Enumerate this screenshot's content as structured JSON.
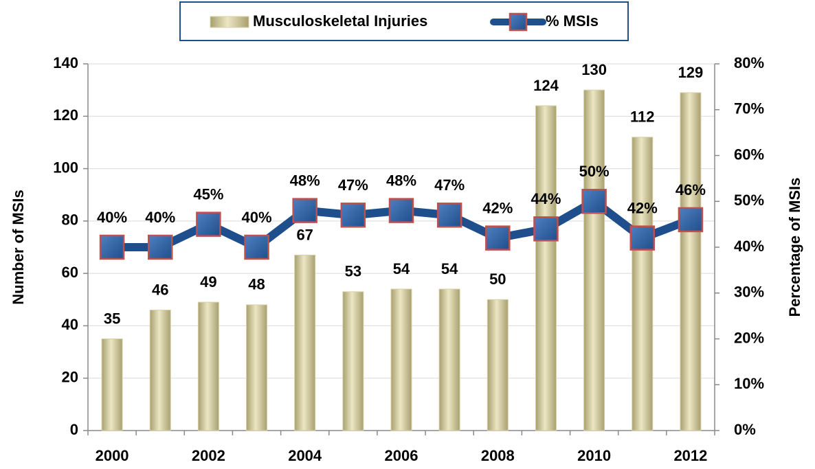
{
  "chart_data": {
    "type": "bar_line",
    "categories": [
      "2000",
      null,
      "2002",
      null,
      "2004",
      null,
      "2006",
      null,
      "2008",
      null,
      "2010",
      null,
      "2012"
    ],
    "series": [
      {
        "name": "Musculoskeletal Injuries",
        "type": "bar",
        "color": "#d8d0a4",
        "values": [
          35,
          46,
          49,
          48,
          67,
          53,
          54,
          54,
          50,
          124,
          130,
          112,
          129
        ]
      },
      {
        "name": "% MSIs",
        "type": "line",
        "axis": "y2",
        "color": "#1f4e8c",
        "marker_color": "#2e5f9e",
        "marker_edge": "#c0504d",
        "values": [
          40,
          40,
          45,
          40,
          48,
          47,
          48,
          47,
          42,
          44,
          50,
          42,
          46
        ],
        "value_labels": [
          "40%",
          "40%",
          "45%",
          "40%",
          "48%",
          "47%",
          "48%",
          "47%",
          "42%",
          "44%",
          "50%",
          "42%",
          "46%"
        ]
      }
    ],
    "ylabel": "Number of MSIs",
    "y2label": "Percentage of MSIs",
    "ylim": [
      0,
      140
    ],
    "yticks": [
      0,
      20,
      40,
      60,
      80,
      100,
      120,
      140
    ],
    "y2lim": [
      0,
      80
    ],
    "y2ticks": [
      {
        "value": 0,
        "label": "0%"
      },
      {
        "value": 10,
        "label": "10%"
      },
      {
        "value": 20,
        "label": "20%"
      },
      {
        "value": 30,
        "label": "30%"
      },
      {
        "value": 40,
        "label": "40%"
      },
      {
        "value": 50,
        "label": "50%"
      },
      {
        "value": 60,
        "label": "60%"
      },
      {
        "value": 70,
        "label": "70%"
      },
      {
        "value": 80,
        "label": "80%"
      }
    ],
    "grid": true,
    "legend": "top"
  }
}
